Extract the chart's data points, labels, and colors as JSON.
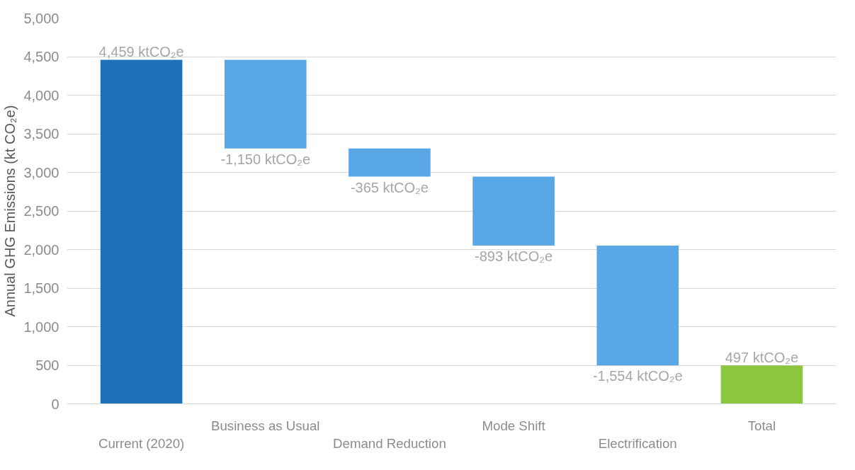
{
  "chart_data": {
    "type": "bar",
    "ylabel": "Annual GHG Emissions (kt CO₂e)",
    "categories": [
      "Current (2020)",
      "Business as Usual",
      "Demand Reduction",
      "Mode Shift",
      "Electrification",
      "Total"
    ],
    "values": [
      4459,
      -1150,
      -365,
      -893,
      -1554,
      497
    ],
    "base": [
      0,
      4459,
      3309,
      2944,
      2051,
      0
    ],
    "colors": [
      "#1b70b8",
      "#5aa7e6",
      "#5aa7e6",
      "#5aa7e6",
      "#5aa7e6",
      "#8dc63f"
    ],
    "value_labels": [
      "4,459 ktCO₂e",
      "-1,150 ktCO₂e",
      "-365 ktCO₂e",
      "-893 ktCO₂e",
      "-1,554 ktCO₂e",
      "497 ktCO₂e"
    ],
    "ylim": [
      0,
      5000
    ],
    "yticks": [
      {
        "value": 0,
        "label": "0"
      },
      {
        "value": 500,
        "label": "500"
      },
      {
        "value": 1000,
        "label": "1,000"
      },
      {
        "value": 1500,
        "label": "1,500"
      },
      {
        "value": 2000,
        "label": "2,000"
      },
      {
        "value": 2500,
        "label": "2,500"
      },
      {
        "value": 3000,
        "label": "3,000"
      },
      {
        "value": 3500,
        "label": "3,500"
      },
      {
        "value": 4000,
        "label": "4,000"
      },
      {
        "value": 4500,
        "label": "4,500"
      },
      {
        "value": 5000,
        "label": "5,000"
      }
    ],
    "grid": "y"
  }
}
